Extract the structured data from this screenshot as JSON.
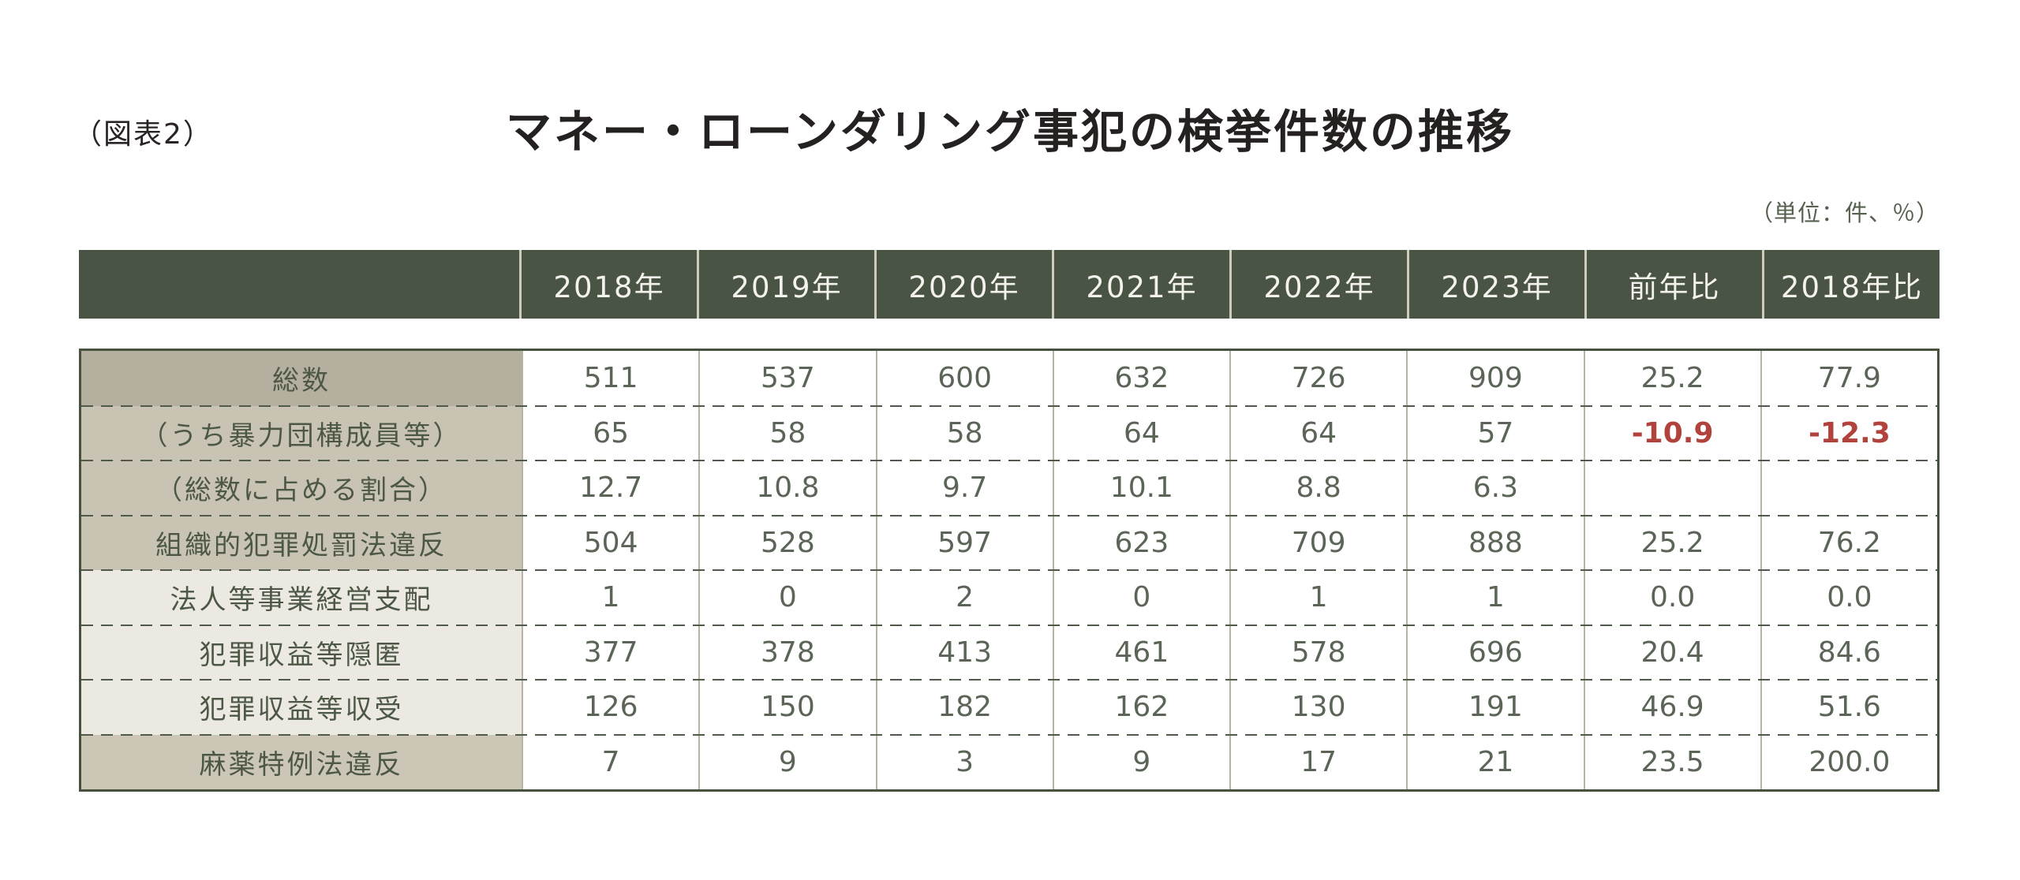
{
  "page": {
    "figure_label": "（図表2）"
  },
  "colors": {
    "header_bg": "#4a5444",
    "header_text": "#f3f2ec",
    "outer_border": "#46513e",
    "dashed_separator": "#4f5a4a",
    "vertical_separator": "#b9b3a4",
    "label_text": "#4c5745",
    "data_text": "#5b6557",
    "negative_text": "#b2423c",
    "row_shade_total": "#b5af9f",
    "row_shade_sub": "#c9c3b4",
    "row_shade_light": "#ebe9e1",
    "row_shade_drug": "#ccc6b7"
  },
  "chart_data": {
    "type": "table",
    "title": "マネー・ローンダリング事犯の検挙件数の推移",
    "unit": "（単位：件、％）",
    "columns": [
      "2018年",
      "2019年",
      "2020年",
      "2021年",
      "2022年",
      "2023年",
      "前年比",
      "2018年比"
    ],
    "rows": [
      {
        "label": "総数",
        "shade": "total",
        "values": [
          "511",
          "537",
          "600",
          "632",
          "726",
          "909",
          "25.2",
          "77.9"
        ]
      },
      {
        "label": "（うち暴力団構成員等）",
        "shade": "sub",
        "values": [
          "65",
          "58",
          "58",
          "64",
          "64",
          "57",
          "-10.9",
          "-12.3"
        ]
      },
      {
        "label": "（総数に占める割合）",
        "shade": "sub",
        "values": [
          "12.7",
          "10.8",
          "9.7",
          "10.1",
          "8.8",
          "6.3",
          "",
          ""
        ]
      },
      {
        "label": "組織的犯罪処罰法違反",
        "shade": "sub",
        "values": [
          "504",
          "528",
          "597",
          "623",
          "709",
          "888",
          "25.2",
          "76.2"
        ]
      },
      {
        "label": "法人等事業経営支配",
        "shade": "light",
        "values": [
          "1",
          "0",
          "2",
          "0",
          "1",
          "1",
          "0.0",
          "0.0"
        ]
      },
      {
        "label": "犯罪収益等隠匿",
        "shade": "light",
        "values": [
          "377",
          "378",
          "413",
          "461",
          "578",
          "696",
          "20.4",
          "84.6"
        ]
      },
      {
        "label": "犯罪収益等収受",
        "shade": "light",
        "values": [
          "126",
          "150",
          "182",
          "162",
          "130",
          "191",
          "46.9",
          "51.6"
        ]
      },
      {
        "label": "麻薬特例法違反",
        "shade": "drug",
        "values": [
          "7",
          "9",
          "3",
          "9",
          "17",
          "21",
          "23.5",
          "200.0"
        ]
      }
    ],
    "legend_position": "none",
    "grid": "dashed-horizontal"
  }
}
